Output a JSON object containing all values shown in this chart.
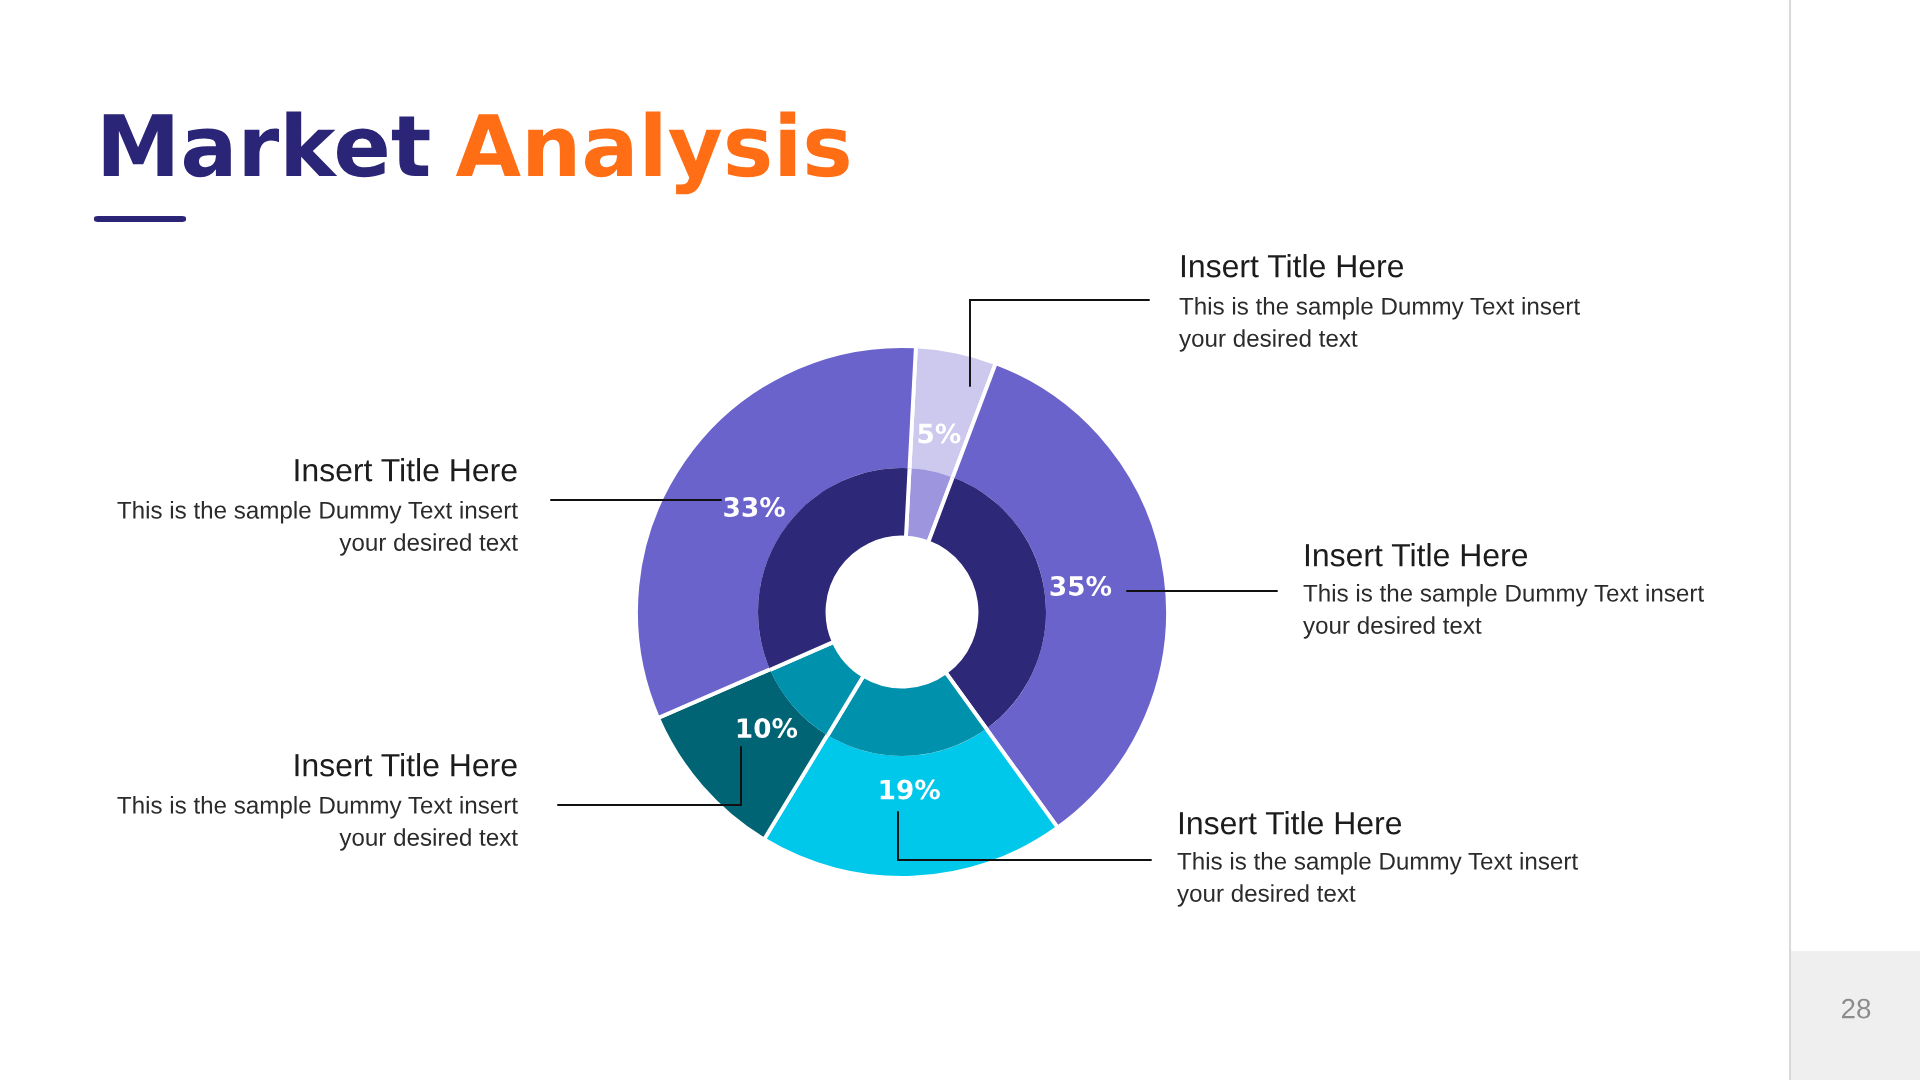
{
  "chart_data": {
    "type": "donut",
    "title": "Market Analysis",
    "categories": [
      null,
      null,
      null,
      null,
      null
    ],
    "series": [
      {
        "values": [
          5,
          35,
          19,
          10,
          33
        ],
        "colors": [
          "#cdc9ee",
          "#6b63cc",
          "#00c8ea",
          "#016474",
          "#6b63cc"
        ],
        "value_labels": [
          "5%",
          "35%",
          "19%",
          "10%",
          "33%"
        ]
      },
      {
        "values": [
          4.9,
          34.3,
          18.6,
          9.8,
          32.4
        ],
        "colors": [
          "#9d96de",
          "#2e2878",
          "#0092ad",
          "#0092ad",
          "#2e2878"
        ]
      }
    ],
    "annotations": [
      "Insert Title Here",
      "This is the sample Dummy Text insert\nyour desired text",
      "Insert Title Here",
      "This is the sample Dummy Text insert\nyour desired text",
      "Insert Title Here",
      "This is the sample Dummy Text insert\nyour desired text",
      "Insert Title Here",
      "This is the sample Dummy Text insert\nyour desired text",
      "Insert Title Here",
      "This is the sample Dummy Text insert\nyour desired text",
      "28"
    ]
  }
}
